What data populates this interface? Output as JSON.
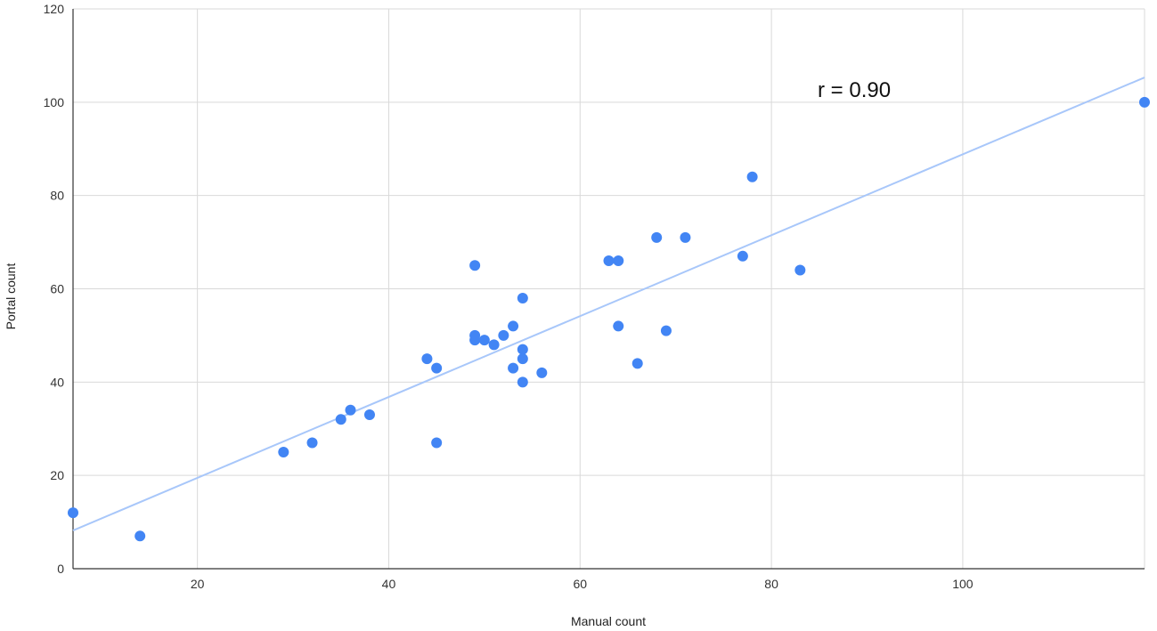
{
  "chart_data": {
    "type": "scatter",
    "xlabel": "Manual count",
    "ylabel": "Portal count",
    "xlim": [
      7,
      119
    ],
    "ylim": [
      0,
      120
    ],
    "xticks": [
      20,
      40,
      60,
      80,
      100
    ],
    "yticks": [
      0,
      20,
      40,
      60,
      80,
      100,
      120
    ],
    "grid": true,
    "annotation": "r = 0.90",
    "colors": {
      "points": "#4285f4",
      "trendline": "#a8c7fa",
      "grid": "#d9d9d9",
      "axis": "#333333"
    },
    "trendline": {
      "x": [
        7,
        119
      ],
      "y": [
        8.2,
        105.3
      ]
    },
    "points": [
      {
        "x": 7,
        "y": 12
      },
      {
        "x": 14,
        "y": 7
      },
      {
        "x": 29,
        "y": 25
      },
      {
        "x": 32,
        "y": 27
      },
      {
        "x": 35,
        "y": 32
      },
      {
        "x": 36,
        "y": 34
      },
      {
        "x": 38,
        "y": 33
      },
      {
        "x": 44,
        "y": 45
      },
      {
        "x": 45,
        "y": 43
      },
      {
        "x": 45,
        "y": 27
      },
      {
        "x": 49,
        "y": 65
      },
      {
        "x": 49,
        "y": 50
      },
      {
        "x": 49,
        "y": 49
      },
      {
        "x": 50,
        "y": 49
      },
      {
        "x": 51,
        "y": 48
      },
      {
        "x": 52,
        "y": 50
      },
      {
        "x": 53,
        "y": 52
      },
      {
        "x": 53,
        "y": 43
      },
      {
        "x": 54,
        "y": 58
      },
      {
        "x": 54,
        "y": 47
      },
      {
        "x": 54,
        "y": 45
      },
      {
        "x": 54,
        "y": 40
      },
      {
        "x": 56,
        "y": 42
      },
      {
        "x": 63,
        "y": 66
      },
      {
        "x": 64,
        "y": 66
      },
      {
        "x": 64,
        "y": 52
      },
      {
        "x": 66,
        "y": 44
      },
      {
        "x": 68,
        "y": 71
      },
      {
        "x": 69,
        "y": 51
      },
      {
        "x": 71,
        "y": 71
      },
      {
        "x": 77,
        "y": 67
      },
      {
        "x": 78,
        "y": 84
      },
      {
        "x": 83,
        "y": 64
      },
      {
        "x": 119,
        "y": 100
      }
    ]
  }
}
